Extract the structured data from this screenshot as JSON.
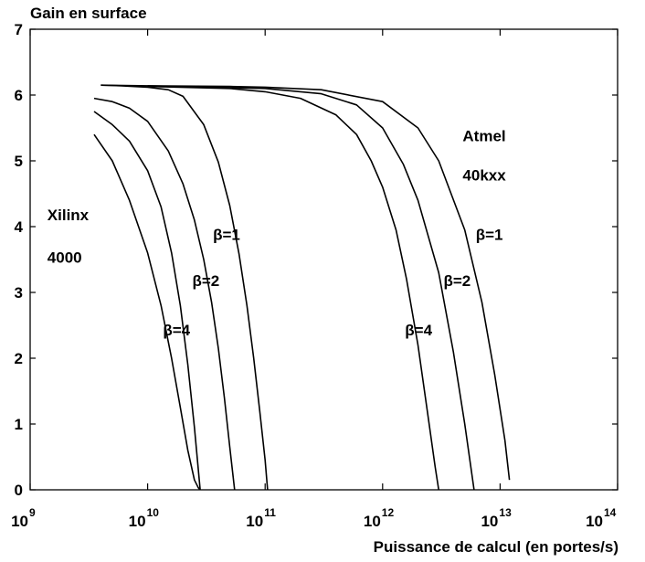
{
  "chart_data": {
    "type": "line",
    "title": "",
    "ylabel": "Gain en surface",
    "xlabel": "Puissance de calcul (en portes/s)",
    "x_scale": "log",
    "xlim": [
      1000000000.0,
      100000000000000.0
    ],
    "ylim": [
      0,
      7
    ],
    "x_ticks": [
      {
        "base": "10",
        "exp": "9"
      },
      {
        "base": "10",
        "exp": "10"
      },
      {
        "base": "10",
        "exp": "11"
      },
      {
        "base": "10",
        "exp": "12"
      },
      {
        "base": "10",
        "exp": "13"
      },
      {
        "base": "10",
        "exp": "14"
      }
    ],
    "y_ticks": [
      "0",
      "1",
      "2",
      "3",
      "4",
      "5",
      "6",
      "7"
    ],
    "grid": false,
    "series": [
      {
        "group": "Xilinx 4000",
        "beta": "β=1",
        "x": [
          4000000000.0,
          6000000000.0,
          10000000000.0,
          15000000000.0,
          20000000000.0,
          30000000000.0,
          40000000000.0,
          50000000000.0,
          60000000000.0,
          70000000000.0,
          80000000000.0,
          90000000000.0,
          100000000000.0,
          105000000000.0
        ],
        "y": [
          6.15,
          6.14,
          6.12,
          6.08,
          5.98,
          5.55,
          4.98,
          4.32,
          3.58,
          2.8,
          2.0,
          1.2,
          0.45,
          0
        ]
      },
      {
        "group": "Xilinx 4000",
        "beta": "β=2",
        "x": [
          3500000000.0,
          5000000000.0,
          7000000000.0,
          10000000000.0,
          15000000000.0,
          20000000000.0,
          25000000000.0,
          30000000000.0,
          35000000000.0,
          40000000000.0,
          45000000000.0,
          50000000000.0,
          55000000000.0
        ],
        "y": [
          5.95,
          5.9,
          5.8,
          5.6,
          5.15,
          4.65,
          4.1,
          3.5,
          2.85,
          2.15,
          1.4,
          0.65,
          0
        ]
      },
      {
        "group": "Xilinx 4000",
        "beta": "β=4",
        "x": [
          3500000000.0,
          5000000000.0,
          7000000000.0,
          10000000000.0,
          13000000000.0,
          16000000000.0,
          19000000000.0,
          22000000000.0,
          25000000000.0,
          28000000000.0
        ],
        "y": [
          5.75,
          5.55,
          5.3,
          4.85,
          4.3,
          3.6,
          2.8,
          1.9,
          0.95,
          0
        ]
      },
      {
        "group": "Xilinx 4000",
        "beta": "",
        "x": [
          3500000000.0,
          5000000000.0,
          7000000000.0,
          10000000000.0,
          13000000000.0,
          16000000000.0,
          19000000000.0,
          22000000000.0,
          25000000000.0,
          27000000000.0,
          28000000000.0
        ],
        "y": [
          5.4,
          5.0,
          4.4,
          3.6,
          2.8,
          2.0,
          1.25,
          0.6,
          0.15,
          0.03,
          0
        ]
      },
      {
        "group": "Atmel 40kxx",
        "beta": "β=1",
        "x": [
          4000000000.0,
          10000000000.0,
          50000000000.0,
          100000000000.0,
          300000000000.0,
          1000000000000.0,
          2000000000000.0,
          3000000000000.0,
          5000000000000.0,
          7000000000000.0,
          9000000000000.0,
          11000000000000.0,
          12000000000000.0
        ],
        "y": [
          6.15,
          6.14,
          6.13,
          6.12,
          6.08,
          5.9,
          5.5,
          5.0,
          3.95,
          2.85,
          1.75,
          0.75,
          0.15
        ]
      },
      {
        "group": "Atmel 40kxx",
        "beta": "β=2",
        "x": [
          10000000000.0,
          100000000000.0,
          300000000000.0,
          600000000000.0,
          1000000000000.0,
          1500000000000.0,
          2000000000000.0,
          3000000000000.0,
          4000000000000.0,
          5000000000000.0,
          6000000000000.0
        ],
        "y": [
          6.14,
          6.1,
          6.02,
          5.85,
          5.5,
          4.95,
          4.4,
          3.3,
          2.1,
          1.0,
          0
        ]
      },
      {
        "group": "Atmel 40kxx",
        "beta": "β=4",
        "x": [
          10000000000.0,
          50000000000.0,
          100000000000.0,
          200000000000.0,
          400000000000.0,
          600000000000.0,
          800000000000.0,
          1000000000000.0,
          1300000000000.0,
          1600000000000.0,
          2000000000000.0,
          2400000000000.0,
          2800000000000.0,
          3000000000000.0
        ],
        "y": [
          6.13,
          6.1,
          6.05,
          5.95,
          5.7,
          5.4,
          5.0,
          4.6,
          3.95,
          3.2,
          2.2,
          1.2,
          0.35,
          0
        ]
      }
    ],
    "annotations": [
      {
        "text": "Xilinx",
        "x": 1400000000.0,
        "y": 4.1
      },
      {
        "text": "4000",
        "x": 1400000000.0,
        "y": 3.45
      },
      {
        "text": "β=1",
        "x": 36000000000.0,
        "y": 3.8
      },
      {
        "text": "β=2",
        "x": 24000000000.0,
        "y": 3.1
      },
      {
        "text": "β=4",
        "x": 13500000000.0,
        "y": 2.35
      },
      {
        "text": "Atmel",
        "x": 4800000000000.0,
        "y": 5.3
      },
      {
        "text": "40kxx",
        "x": 4800000000000.0,
        "y": 4.7
      },
      {
        "text": "β=1",
        "x": 6200000000000.0,
        "y": 3.8
      },
      {
        "text": "β=2",
        "x": 3300000000000.0,
        "y": 3.1
      },
      {
        "text": "β=4",
        "x": 1550000000000.0,
        "y": 2.35
      }
    ]
  }
}
